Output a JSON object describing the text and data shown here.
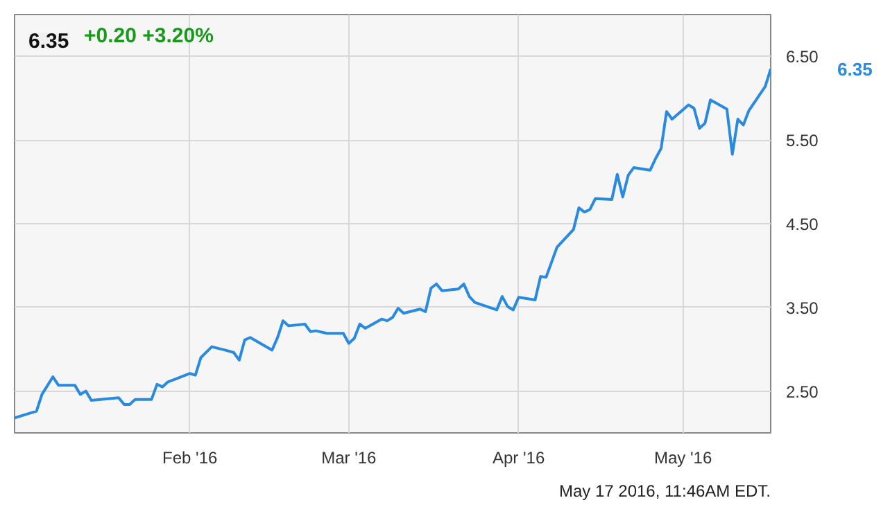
{
  "chart_data": {
    "type": "line",
    "title": "6.35",
    "subtitle": "+0.20 +3.20%",
    "x": [
      "2015-12-31",
      "2016-01-04",
      "2016-01-05",
      "2016-01-07",
      "2016-01-08",
      "2016-01-11",
      "2016-01-12",
      "2016-01-13",
      "2016-01-14",
      "2016-01-19",
      "2016-01-20",
      "2016-01-21",
      "2016-01-22",
      "2016-01-25",
      "2016-01-26",
      "2016-01-27",
      "2016-01-28",
      "2016-02-01",
      "2016-02-02",
      "2016-02-03",
      "2016-02-05",
      "2016-02-08",
      "2016-02-09",
      "2016-02-10",
      "2016-02-11",
      "2016-02-12",
      "2016-02-16",
      "2016-02-17",
      "2016-02-18",
      "2016-02-19",
      "2016-02-22",
      "2016-02-23",
      "2016-02-24",
      "2016-02-26",
      "2016-02-29",
      "2016-03-01",
      "2016-03-02",
      "2016-03-03",
      "2016-03-04",
      "2016-03-07",
      "2016-03-08",
      "2016-03-09",
      "2016-03-10",
      "2016-03-11",
      "2016-03-14",
      "2016-03-15",
      "2016-03-16",
      "2016-03-17",
      "2016-03-18",
      "2016-03-21",
      "2016-03-22",
      "2016-03-23",
      "2016-03-24",
      "2016-03-28",
      "2016-03-29",
      "2016-03-30",
      "2016-03-31",
      "2016-04-01",
      "2016-04-04",
      "2016-04-05",
      "2016-04-06",
      "2016-04-07",
      "2016-04-08",
      "2016-04-11",
      "2016-04-12",
      "2016-04-13",
      "2016-04-14",
      "2016-04-15",
      "2016-04-18",
      "2016-04-19",
      "2016-04-20",
      "2016-04-21",
      "2016-04-22",
      "2016-04-25",
      "2016-04-26",
      "2016-04-27",
      "2016-04-28",
      "2016-04-29",
      "2016-05-02",
      "2016-05-03",
      "2016-05-04",
      "2016-05-05",
      "2016-05-06",
      "2016-05-09",
      "2016-05-10",
      "2016-05-11",
      "2016-05-12",
      "2016-05-13",
      "2016-05-16",
      "2016-05-17"
    ],
    "series": [
      {
        "color": "#2a8ae0",
        "values": [
          2.18,
          2.26,
          2.46,
          2.67,
          2.57,
          2.57,
          2.46,
          2.5,
          2.39,
          2.42,
          2.34,
          2.34,
          2.4,
          2.4,
          2.58,
          2.55,
          2.61,
          2.71,
          2.69,
          2.9,
          3.03,
          2.98,
          2.96,
          2.87,
          3.11,
          3.14,
          2.99,
          3.14,
          3.34,
          3.28,
          3.3,
          3.21,
          3.22,
          3.19,
          3.19,
          3.07,
          3.13,
          3.3,
          3.25,
          3.36,
          3.34,
          3.38,
          3.49,
          3.43,
          3.48,
          3.45,
          3.73,
          3.78,
          3.7,
          3.72,
          3.78,
          3.63,
          3.56,
          3.47,
          3.63,
          3.51,
          3.47,
          3.62,
          3.59,
          3.87,
          3.86,
          4.04,
          4.22,
          4.43,
          4.69,
          4.64,
          4.67,
          4.8,
          4.79,
          5.09,
          4.82,
          5.08,
          5.17,
          5.14,
          5.28,
          5.4,
          5.84,
          5.75,
          5.92,
          5.88,
          5.64,
          5.7,
          5.98,
          5.87,
          5.33,
          5.75,
          5.68,
          5.85,
          6.14,
          6.35
        ]
      }
    ],
    "xlim": [
      "2015-12-31",
      "2016-05-17"
    ],
    "xticks": [
      {
        "value": "2016-02-01",
        "label": "Feb '16"
      },
      {
        "value": "2016-03-01",
        "label": "Mar '16"
      },
      {
        "value": "2016-04-01",
        "label": "Apr '16"
      },
      {
        "value": "2016-05-01",
        "label": "May '16"
      }
    ],
    "ylim": [
      2.0,
      7.0
    ],
    "yticks": [
      {
        "value": 2.5,
        "label": "2.50"
      },
      {
        "value": 3.5,
        "label": "3.50"
      },
      {
        "value": 4.5,
        "label": "4.50"
      },
      {
        "value": 5.5,
        "label": "5.50"
      },
      {
        "value": 6.5,
        "label": "6.50"
      }
    ],
    "grid": true,
    "marker": "none",
    "line_style": "solid",
    "annotations": [
      "6.35",
      "May 17 2016, 11:46AM EDT."
    ]
  }
}
